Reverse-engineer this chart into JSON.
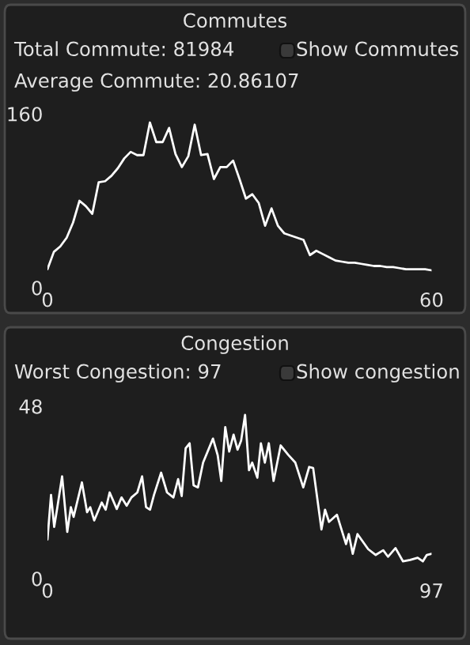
{
  "chart_data": [
    {
      "type": "line",
      "title": "Commutes",
      "annotations": [
        "Total Commute: 81984",
        "Show Commutes",
        "Average Commute: 20.86107"
      ],
      "xlim": [
        0,
        60
      ],
      "ylim": [
        0,
        160
      ],
      "xticks": [
        0,
        60
      ],
      "yticks": [
        0,
        160
      ],
      "series": [
        {
          "color": "#ffffff",
          "x": [
            0,
            1,
            2,
            3,
            4,
            5,
            6,
            7,
            8,
            9,
            10,
            11,
            12,
            13,
            14,
            15,
            16,
            17,
            18,
            19,
            20,
            21,
            22,
            23,
            24,
            25,
            26,
            27,
            28,
            29,
            30,
            31,
            32,
            33,
            34,
            35,
            36,
            37,
            38,
            39,
            40,
            41,
            42,
            43,
            44,
            45,
            46,
            47,
            48,
            49,
            50,
            51,
            52,
            53,
            54,
            55,
            56,
            57,
            58,
            59,
            60
          ],
          "values": [
            17,
            33,
            38,
            46,
            60,
            80,
            75,
            68,
            97,
            98,
            103,
            110,
            119,
            125,
            122,
            122,
            152,
            134,
            134,
            147,
            123,
            111,
            121,
            150,
            122,
            123,
            100,
            111,
            111,
            117,
            100,
            82,
            86,
            78,
            57,
            73,
            57,
            50,
            48,
            46,
            44,
            30,
            34,
            31,
            28,
            25,
            24,
            23,
            23,
            22,
            21,
            20,
            20,
            19,
            19,
            18,
            17,
            17,
            17,
            17,
            16
          ]
        }
      ]
    },
    {
      "type": "line",
      "title": "Congestion",
      "annotations": [
        "Worst Congestion: 97",
        "Show congestion"
      ],
      "xlim": [
        0,
        97
      ],
      "ylim": [
        0,
        48
      ],
      "xticks": [
        0,
        97
      ],
      "yticks": [
        0,
        48
      ],
      "series": [
        {
          "color": "#ffffff",
          "x": [
            0,
            0.9,
            1.7,
            2.5,
            3.7,
            5.0,
            5.9,
            6.6,
            8.7,
            10.0,
            10.8,
            11.8,
            13.7,
            14.7,
            15.7,
            17.5,
            18.7,
            20.0,
            21.2,
            22.7,
            23.9,
            24.9,
            25.9,
            26.9,
            28.7,
            30.2,
            31.8,
            33.0,
            33.9,
            34.9,
            35.9,
            36.9,
            38.0,
            39.3,
            41.8,
            43.0,
            43.9,
            44.9,
            45.9,
            47.0,
            48.0,
            48.9,
            49.9,
            50.9,
            51.7,
            53.0,
            53.9,
            54.9,
            55.9,
            57.1,
            58.9,
            60.8,
            62.6,
            64.6,
            66.1,
            67.1,
            69.2,
            70.1,
            71.1,
            73.1,
            75.4,
            76.1,
            77.1,
            78.3,
            81.0,
            82.9,
            84.8,
            86.0,
            87.9,
            89.8,
            91.6,
            93.5,
            94.8,
            95.8,
            97.0
          ],
          "values": [
            10.9,
            23.3,
            14.4,
            19.9,
            28.5,
            13.0,
            19.9,
            17.2,
            26.8,
            18.5,
            19.9,
            16.2,
            21.2,
            19.2,
            24.0,
            19.4,
            22.6,
            20.3,
            22.6,
            24.0,
            28.5,
            19.9,
            19.2,
            23.3,
            29.5,
            24.0,
            22.6,
            27.7,
            23.0,
            36.3,
            37.7,
            26.0,
            25.4,
            32.3,
            39.0,
            34.3,
            27.2,
            42.2,
            35.4,
            40.1,
            35.9,
            38.4,
            45.6,
            30.2,
            32.3,
            28.1,
            37.7,
            32.3,
            37.7,
            27.2,
            37.1,
            34.5,
            32.3,
            25.4,
            31.1,
            30.8,
            13.7,
            19.2,
            15.8,
            17.8,
            9.6,
            12.4,
            6.9,
            12.4,
            8.2,
            6.6,
            7.9,
            6.1,
            8.5,
            4.8,
            5.2,
            5.8,
            4.8,
            6.6,
            6.9
          ]
        }
      ]
    }
  ]
}
